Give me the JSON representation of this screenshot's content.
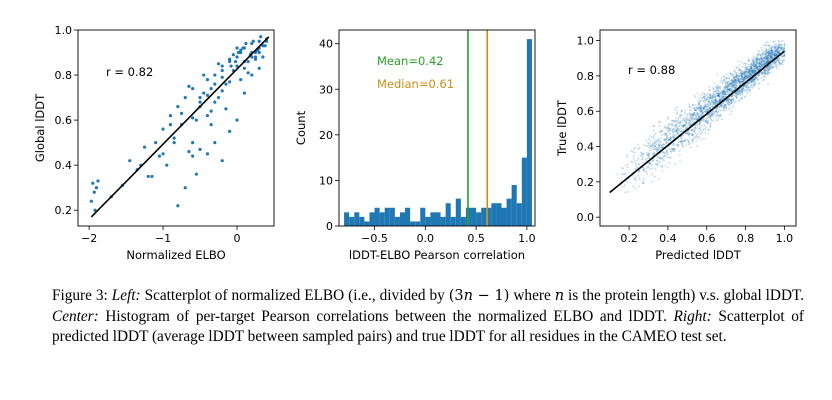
{
  "chart_data": [
    {
      "type": "scatter",
      "xlabel": "Normalized ELBO",
      "ylabel": "Global lDDT",
      "xlim": [
        -2.15,
        0.5
      ],
      "ylim": [
        0.13,
        1.0
      ],
      "xticks": [
        -2,
        -1,
        0
      ],
      "xtick_labels": [
        "−2",
        "−1",
        "0"
      ],
      "yticks": [
        0.2,
        0.4,
        0.6,
        0.8,
        1.0
      ],
      "ytick_labels": [
        "0.2",
        "0.4",
        "0.6",
        "0.8",
        "1.0"
      ],
      "annotation": "r = 0.82",
      "color": "#1f77b4",
      "fit_line": {
        "x": [
          -1.97,
          0.43
        ],
        "y": [
          0.17,
          0.97
        ]
      },
      "points": {
        "x": [
          -1.95,
          -1.93,
          -1.9,
          -1.97,
          -1.88,
          -1.92,
          -1.7,
          -1.55,
          -1.45,
          -1.35,
          -1.25,
          -1.2,
          -1.1,
          -1.05,
          -1.0,
          -0.95,
          -0.9,
          -0.85,
          -0.8,
          -0.75,
          -0.7,
          -0.65,
          -0.6,
          -0.55,
          -0.5,
          -0.45,
          -0.4,
          -0.35,
          -0.3,
          -0.25,
          -0.2,
          -0.15,
          -0.1,
          -0.05,
          0.0,
          0.05,
          0.1,
          0.15,
          0.2,
          0.25,
          0.3,
          -0.6,
          -0.5,
          -0.4,
          -0.3,
          -0.2,
          -0.1,
          0.0,
          0.1,
          0.2,
          -0.7,
          -0.55,
          -0.35,
          -0.15,
          0.05,
          0.25,
          -0.8,
          -0.6,
          -0.4,
          -0.2,
          0.0,
          0.2,
          0.35,
          -0.3,
          -0.1,
          0.1,
          0.3,
          0.15,
          0.25,
          0.3,
          0.4,
          0.35,
          0.05,
          -0.05,
          -0.25,
          -0.45,
          -0.65,
          -0.85,
          -1.0,
          -1.15,
          -1.3,
          -0.9,
          -0.75,
          -0.5,
          -0.35,
          -0.2,
          0.1,
          0.2,
          0.3,
          0.0,
          -0.1,
          -0.2,
          -0.3,
          -0.4,
          -0.5,
          -0.6,
          0.4,
          0.38,
          0.32,
          0.28,
          0.22,
          0.18,
          0.12,
          0.08,
          0.02,
          -0.02,
          -0.08
        ],
        "y": [
          0.32,
          0.28,
          0.3,
          0.24,
          0.33,
          0.2,
          0.26,
          0.31,
          0.42,
          0.38,
          0.48,
          0.35,
          0.5,
          0.44,
          0.56,
          0.4,
          0.62,
          0.52,
          0.66,
          0.58,
          0.7,
          0.46,
          0.74,
          0.6,
          0.68,
          0.72,
          0.78,
          0.64,
          0.8,
          0.7,
          0.84,
          0.76,
          0.86,
          0.82,
          0.88,
          0.9,
          0.92,
          0.86,
          0.94,
          0.9,
          0.92,
          0.44,
          0.47,
          0.45,
          0.5,
          0.42,
          0.55,
          0.6,
          0.72,
          0.8,
          0.3,
          0.36,
          0.58,
          0.65,
          0.78,
          0.88,
          0.22,
          0.5,
          0.62,
          0.73,
          0.84,
          0.9,
          0.93,
          0.68,
          0.77,
          0.86,
          0.95,
          0.81,
          0.87,
          0.83,
          0.95,
          0.88,
          0.91,
          0.89,
          0.85,
          0.8,
          0.75,
          0.5,
          0.45,
          0.35,
          0.4,
          0.58,
          0.63,
          0.7,
          0.74,
          0.79,
          0.83,
          0.88,
          0.9,
          0.92,
          0.87,
          0.82,
          0.76,
          0.71,
          0.66,
          0.61,
          0.96,
          0.93,
          0.97,
          0.91,
          0.95,
          0.89,
          0.94,
          0.92,
          0.9,
          0.86,
          0.84
        ]
      }
    },
    {
      "type": "bar",
      "subtype": "histogram",
      "xlabel": "lDDT-ELBO Pearson correlation",
      "ylabel": "Count",
      "xlim": [
        -0.85,
        1.08
      ],
      "ylim": [
        0,
        43
      ],
      "xticks": [
        -0.5,
        0.0,
        0.5,
        1.0
      ],
      "xtick_labels": [
        "−0.5",
        "0.0",
        "0.5",
        "1.0"
      ],
      "yticks": [
        0,
        10,
        20,
        30,
        40
      ],
      "ytick_labels": [
        "0",
        "10",
        "20",
        "30",
        "40"
      ],
      "color": "#1f77b4",
      "bin_edges": [
        -0.8,
        -0.75,
        -0.7,
        -0.65,
        -0.6,
        -0.55,
        -0.5,
        -0.45,
        -0.4,
        -0.35,
        -0.3,
        -0.25,
        -0.2,
        -0.15,
        -0.1,
        -0.05,
        0.0,
        0.05,
        0.1,
        0.15,
        0.2,
        0.25,
        0.3,
        0.35,
        0.4,
        0.45,
        0.5,
        0.55,
        0.6,
        0.65,
        0.7,
        0.75,
        0.8,
        0.85,
        0.9,
        0.95,
        1.0
      ],
      "counts": [
        3,
        2,
        3,
        2,
        1,
        3,
        4,
        3,
        4,
        4,
        2,
        3,
        4,
        1,
        1,
        4,
        2,
        3,
        3,
        2,
        5,
        2,
        6,
        2,
        4,
        4,
        3,
        4,
        4,
        5,
        5,
        4,
        6,
        9,
        5,
        15,
        41
      ],
      "mean_line": {
        "value": 0.42,
        "label": "Mean=0.42",
        "color": "#2ca02c"
      },
      "median_line": {
        "value": 0.61,
        "label": "Median=0.61",
        "color": "#c8901a"
      }
    },
    {
      "type": "scatter",
      "xlabel": "Predicted lDDT",
      "ylabel": "True lDDT",
      "xlim": [
        0.05,
        1.06
      ],
      "ylim": [
        -0.05,
        1.06
      ],
      "xticks": [
        0.2,
        0.4,
        0.6,
        0.8,
        1.0
      ],
      "xtick_labels": [
        "0.2",
        "0.4",
        "0.6",
        "0.8",
        "1.0"
      ],
      "yticks": [
        0.0,
        0.2,
        0.4,
        0.6,
        0.8,
        1.0
      ],
      "ytick_labels": [
        "0.0",
        "0.2",
        "0.4",
        "0.6",
        "0.8",
        "1.0"
      ],
      "annotation": "r = 0.88",
      "color": "#1f77b4",
      "fit_line": {
        "x": [
          0.1,
          1.0
        ],
        "y": [
          0.14,
          0.94
        ]
      },
      "density_cloud": {
        "center_x": [
          0.15,
          0.98
        ],
        "center_y": [
          0.2,
          0.95
        ],
        "spread": 0.13
      }
    }
  ],
  "caption": {
    "figure_label": "Figure 3:",
    "left_label": "Left:",
    "left_text_1": "Scatterplot of normalized ELBO (i.e., divided by ",
    "math_open": "(3",
    "math_n": "n",
    "math_close": " − 1)",
    "left_text_2": " where ",
    "var_n": "n",
    "left_text_3": " is the protein length) v.s. global lDDT. ",
    "center_label": "Center:",
    "center_text": "Histogram of per-target Pearson correlations between the normalized ELBO and lDDT. ",
    "right_label": "Right:",
    "right_text": "Scatterplot of predicted lDDT (average lDDT between sampled pairs) and true lDDT for all residues in the CAMEO test set."
  }
}
